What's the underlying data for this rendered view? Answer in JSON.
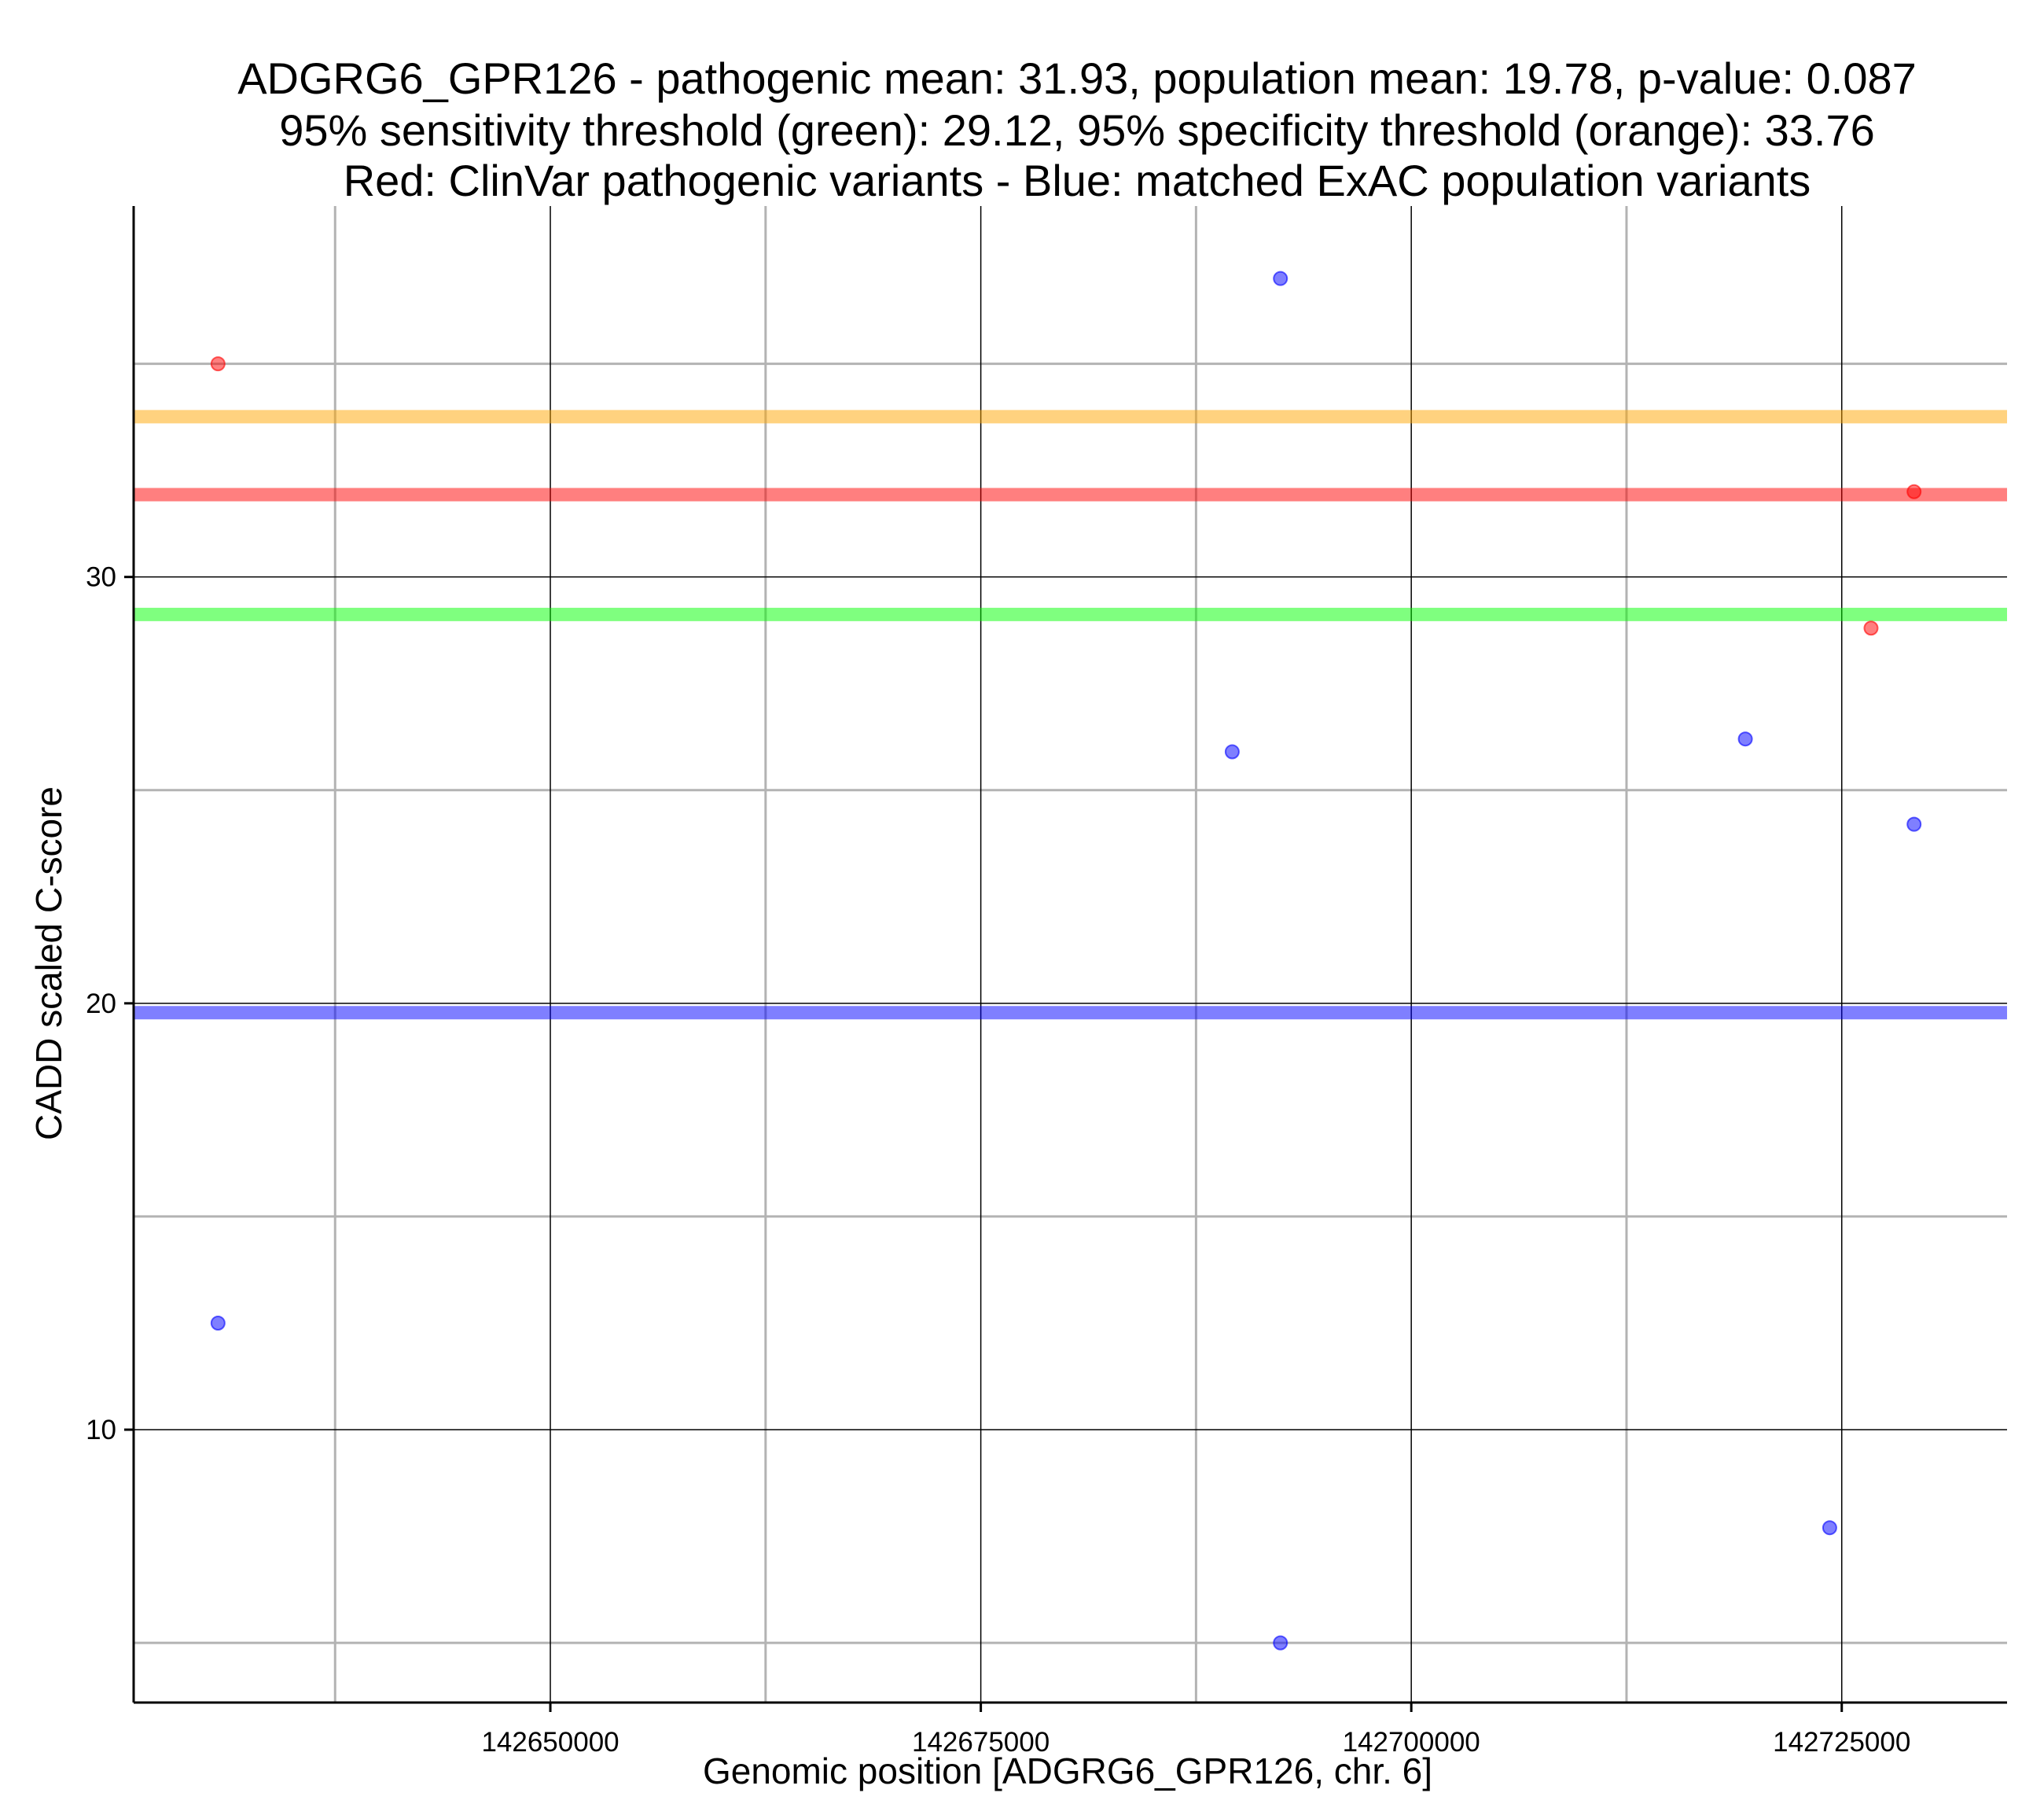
{
  "chart_data": {
    "type": "scatter",
    "title_lines": [
      "ADGRG6_GPR126 - pathogenic mean: 31.93, population mean: 19.78, p-value: 0.087",
      "95% sensitivity threshold (green): 29.12, 95% specificity threshold (orange): 33.76",
      "Red: ClinVar pathogenic variants - Blue: matched ExAC population variants"
    ],
    "xlabel": "Genomic position [ADGRG6_GPR126, chr. 6]",
    "ylabel": "CADD scaled C-score",
    "xlim": [
      142625800,
      142734600
    ],
    "ylim": [
      3.6,
      38.7
    ],
    "x_major_ticks": [
      142650000,
      142675000,
      142700000,
      142725000
    ],
    "x_tick_labels": [
      "142650000",
      "142675000",
      "142700000",
      "142725000"
    ],
    "x_minor_ticks": [
      142637500,
      142662500,
      142687500,
      142712500
    ],
    "y_major_ticks": [
      10,
      20,
      30
    ],
    "y_tick_labels": [
      "10",
      "20",
      "30"
    ],
    "y_minor_ticks": [
      5,
      15,
      25,
      35
    ],
    "grid": true,
    "hlines": [
      {
        "name": "specificity-threshold",
        "value": 33.76,
        "color": "#ffa500"
      },
      {
        "name": "pathogenic-mean",
        "value": 31.93,
        "color": "#ff0000"
      },
      {
        "name": "sensitivity-threshold",
        "value": 29.12,
        "color": "#00ff00"
      },
      {
        "name": "population-mean",
        "value": 19.78,
        "color": "#0000ff"
      }
    ],
    "series": [
      {
        "name": "ClinVar pathogenic variants",
        "color": "#ff0000",
        "points": [
          {
            "x": 142630700,
            "y": 35.0
          },
          {
            "x": 142729200,
            "y": 32.0
          },
          {
            "x": 142726700,
            "y": 28.8
          }
        ]
      },
      {
        "name": "matched ExAC population variants",
        "color": "#0000ff",
        "points": [
          {
            "x": 142692400,
            "y": 37.0
          },
          {
            "x": 142689600,
            "y": 25.9
          },
          {
            "x": 142719400,
            "y": 26.2
          },
          {
            "x": 142729200,
            "y": 24.2
          },
          {
            "x": 142630700,
            "y": 12.5
          },
          {
            "x": 142724300,
            "y": 7.7
          },
          {
            "x": 142692400,
            "y": 5.0
          }
        ]
      }
    ]
  }
}
